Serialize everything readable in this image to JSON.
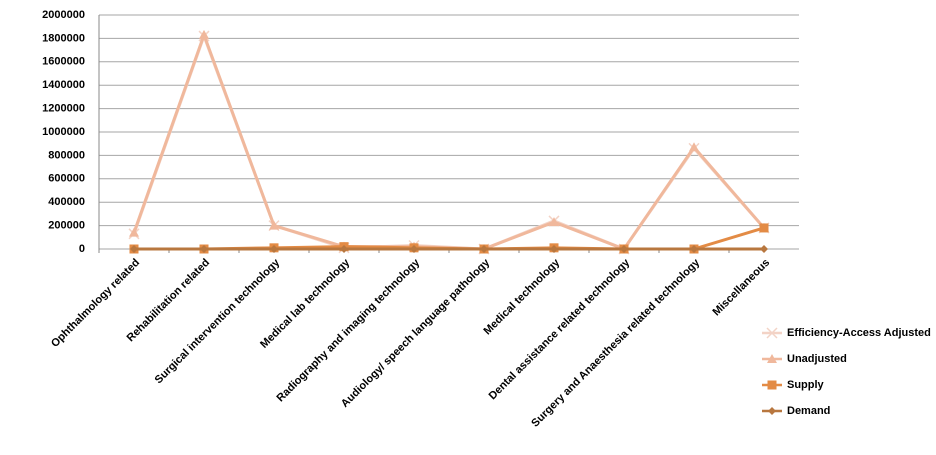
{
  "chart_data": {
    "type": "line",
    "categories": [
      "Ophthalmology related",
      "Rehabilitation related",
      "Surgical  intervention technology",
      "Medical lab technology",
      "Radiography and imaging technology",
      "Audiology/  speech language pathology",
      "Medical technology",
      "Dental assistance  related technology",
      "Surgery and Anaesthesia related technology",
      "Miscellaneous"
    ],
    "series": [
      {
        "name": "Efficiency-Access  Adjusted",
        "color": "#f3d3c6",
        "marker": "x",
        "values": [
          130000,
          1820000,
          200000,
          10000,
          30000,
          0,
          240000,
          0,
          860000,
          180000
        ]
      },
      {
        "name": "Unadjusted",
        "color": "#f0b89c",
        "marker": "triangle",
        "values": [
          140000,
          1830000,
          200000,
          20000,
          20000,
          0,
          230000,
          0,
          870000,
          180000
        ]
      },
      {
        "name": "Supply",
        "color": "#e38b45",
        "marker": "square",
        "values": [
          0,
          0,
          10000,
          20000,
          10000,
          0,
          10000,
          0,
          0,
          180000
        ]
      },
      {
        "name": "Demand",
        "color": "#b8773f",
        "marker": "diamond",
        "values": [
          0,
          0,
          0,
          0,
          0,
          0,
          0,
          0,
          0,
          0
        ]
      }
    ],
    "ylim": [
      0,
      2000000
    ],
    "yticks": [
      0,
      200000,
      400000,
      600000,
      800000,
      1000000,
      1200000,
      1400000,
      1600000,
      1800000,
      2000000
    ],
    "grid": true,
    "legend": "right"
  }
}
